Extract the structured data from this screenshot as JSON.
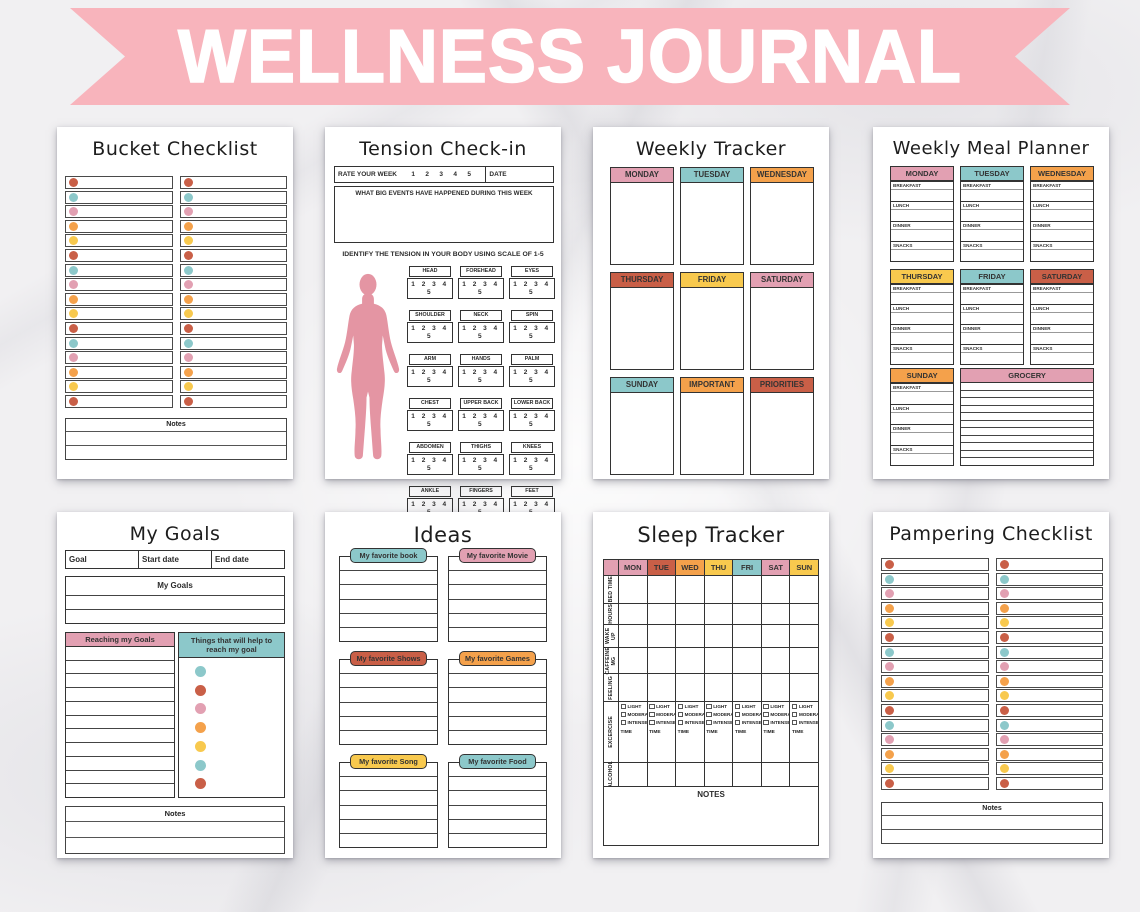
{
  "banner": {
    "title": "WELLNESS JOURNAL",
    "color": "#f8b4bc"
  },
  "palette": {
    "coral": "#c95f47",
    "teal": "#8cc8ca",
    "pink": "#e2a0b2",
    "orange": "#f4a14b",
    "yellow": "#f8c94e",
    "body_pink": "#e495a3",
    "banner_pink": "#f8b4bc"
  },
  "pages": {
    "bucket": {
      "title": "Bucket Checklist",
      "columns": 2,
      "dot_colors": [
        "coral",
        "teal",
        "pink",
        "orange",
        "yellow",
        "coral",
        "teal",
        "pink",
        "orange",
        "yellow",
        "coral",
        "teal",
        "pink",
        "orange",
        "yellow",
        "coral"
      ],
      "notes_label": "Notes"
    },
    "tension": {
      "title": "Tension Check-in",
      "rate_label": "RATE YOUR WEEK",
      "rate_scale": [
        "1",
        "2",
        "3",
        "4",
        "5"
      ],
      "date_label": "DATE",
      "events_label": "WHAT BIG EVENTS HAVE HAPPENED DURING THIS WEEK",
      "instruction": "IDENTIFY THE TENSION IN YOUR BODY USING SCALE OF 1-5",
      "scale": "1 2 3 4 5",
      "body_parts": [
        "HEAD",
        "FOREHEAD",
        "EYES",
        "SHOULDER",
        "NECK",
        "SPIN",
        "ARM",
        "HANDS",
        "PALM",
        "CHEST",
        "UPPER BACK",
        "LOWER BACK",
        "ABDOMEN",
        "THIGHS",
        "KNEES",
        "ANKLE",
        "FINGERS",
        "FEET"
      ]
    },
    "tracker": {
      "title": "Weekly Tracker",
      "cells": [
        {
          "label": "MONDAY",
          "color": "pink"
        },
        {
          "label": "TUESDAY",
          "color": "teal"
        },
        {
          "label": "WEDNESDAY",
          "color": "orange"
        },
        {
          "label": "THURSDAY",
          "color": "coral"
        },
        {
          "label": "FRIDAY",
          "color": "yellow"
        },
        {
          "label": "SATURDAY",
          "color": "pink"
        },
        {
          "label": "SUNDAY",
          "color": "teal"
        },
        {
          "label": "IMPORTANT",
          "color": "orange"
        },
        {
          "label": "PRIORITIES",
          "color": "coral"
        }
      ]
    },
    "meal": {
      "title": "Weekly Meal Planner",
      "meals": [
        "BREAKFAST",
        "LUNCH",
        "DINNER",
        "SNACKS"
      ],
      "days": [
        {
          "label": "MONDAY",
          "color": "pink"
        },
        {
          "label": "TUESDAY",
          "color": "teal"
        },
        {
          "label": "WEDNESDAY",
          "color": "orange"
        },
        {
          "label": "THURSDAY",
          "color": "yellow"
        },
        {
          "label": "FRIDAY",
          "color": "teal"
        },
        {
          "label": "SATURDAY",
          "color": "coral"
        },
        {
          "label": "SUNDAY",
          "color": "orange"
        }
      ],
      "grocery": {
        "label": "GROCERY",
        "color": "pink",
        "lines": 11
      }
    },
    "goals": {
      "title": "My Goals",
      "header_cols": [
        "Goal",
        "Start date",
        "End date"
      ],
      "goals_box_label": "My Goals",
      "reaching_label": "Reaching my Goals",
      "reaching_rows": 11,
      "things_label": "Things that will help to reach my goal",
      "things_dots": [
        "teal",
        "coral",
        "pink",
        "orange",
        "yellow",
        "teal",
        "coral"
      ],
      "notes_label": "Notes"
    },
    "ideas": {
      "title": "Ideas",
      "lines_per_box": 6,
      "boxes": [
        {
          "label": "My favorite book",
          "color": "teal"
        },
        {
          "label": "My favorite Movie",
          "color": "pink"
        },
        {
          "label": "My favorite Shows",
          "color": "coral"
        },
        {
          "label": "My favorite Games",
          "color": "orange"
        },
        {
          "label": "My favorite Song",
          "color": "yellow"
        },
        {
          "label": "My favorite Food",
          "color": "teal"
        }
      ]
    },
    "sleep": {
      "title": "Sleep Tracker",
      "day_headers": [
        {
          "label": "MON",
          "color": "pink"
        },
        {
          "label": "TUE",
          "color": "coral"
        },
        {
          "label": "WED",
          "color": "orange"
        },
        {
          "label": "THU",
          "color": "yellow"
        },
        {
          "label": "FRI",
          "color": "teal"
        },
        {
          "label": "SAT",
          "color": "pink"
        },
        {
          "label": "SUN",
          "color": "yellow"
        }
      ],
      "row_labels": [
        "BED TIME",
        "HOURS",
        "WAKE UP",
        "CAFFEINE MG",
        "FEELING",
        "EXCERCISE",
        "ALCOHOL"
      ],
      "exercise_options": [
        "LIGHT",
        "MODERATE",
        "INTENSE"
      ],
      "time_label": "TIME",
      "notes_label": "NOTES"
    },
    "pampering": {
      "title": "Pampering Checklist",
      "columns": 2,
      "dot_colors": [
        "coral",
        "teal",
        "pink",
        "orange",
        "yellow",
        "coral",
        "teal",
        "pink",
        "orange",
        "yellow",
        "coral",
        "teal",
        "pink",
        "orange",
        "yellow",
        "coral"
      ],
      "notes_label": "Notes"
    }
  }
}
